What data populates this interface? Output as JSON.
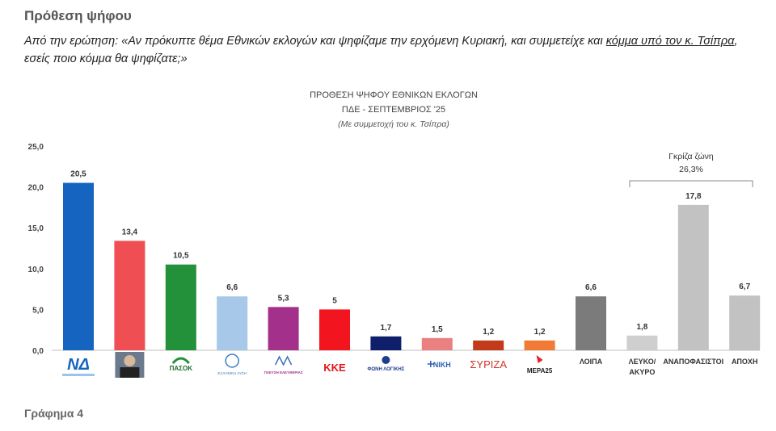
{
  "header": {
    "title": "Πρόθεση ψήφου",
    "question_prefix": "Από την ερώτηση: «Αν πρόκυπτε θέμα Εθνικών εκλογών και ψηφίζαμε την ερχόμενη Κυριακή, και συμμετείχε και ",
    "question_underlined": "κόμμα υπό τον κ. Τσίπρα",
    "question_suffix": ", εσείς ποιο κόμμα θα ψηφίζατε;»"
  },
  "footer": {
    "caption": "Γράφημα 4"
  },
  "chart_data": {
    "type": "bar",
    "title": "ΠΡΟΘΕΣΗ ΨΗΦΟΥ  ΕΘΝΙΚΩΝ ΕΚΛΟΓΩΝ",
    "subtitle": "ΠΔΕ - ΣΕΠΤΕΜΒΡΙΟΣ '25",
    "note": "(Με συμμετοχή του κ. Τσίπρα)",
    "xlabel": "",
    "ylabel": "",
    "ylim": [
      0,
      25
    ],
    "yticks": [
      "0,0",
      "5,0",
      "10,0",
      "15,0",
      "20,0",
      "25,0"
    ],
    "grid": false,
    "categories": [
      "ΝΔ",
      "Τσίπρας",
      "ΠΑΣΟΚ",
      "ΕΛΛΗΝΙΚΗ ΛΥΣΗ",
      "ΠΛΕΥΣΗ ΕΛΕΥΘΕΡΙΑΣ",
      "ΚΚΕ",
      "ΦΩΝΗ ΛΟΓΙΚΗΣ",
      "ΝΙΚΗ",
      "ΣΥΡΙΖΑ",
      "ΜΕΡΑ25",
      "ΛΟΙΠΑ",
      "ΛΕΥΚΟ/ ΑΚΥΡΟ",
      "ΑΝΑΠΟΦΑΣΙΣΤΟΙ",
      "ΑΠΟΧΗ"
    ],
    "values": [
      20.5,
      13.4,
      10.5,
      6.6,
      5.3,
      5,
      1.7,
      1.5,
      1.2,
      1.2,
      6.6,
      1.8,
      17.8,
      6.7
    ],
    "value_labels": [
      "20,5",
      "13,4",
      "10,5",
      "6,6",
      "5,3",
      "5",
      "1,7",
      "1,5",
      "1,2",
      "1,2",
      "6,6",
      "1,8",
      "17,8",
      "6,7"
    ],
    "colors": [
      "#1565c0",
      "#ef4f53",
      "#23913a",
      "#a7c8e8",
      "#a3318b",
      "#f2141e",
      "#0f1f6b",
      "#ea8080",
      "#c23a1a",
      "#f07a36",
      "#7b7b7b",
      "#cfcfcf",
      "#c2c2c2",
      "#c2c2c2"
    ],
    "category_text_labels": [
      "",
      "",
      "",
      "",
      "",
      "",
      "",
      "",
      "",
      "",
      "ΛΟΙΠΑ",
      "ΛΕΥΚΟ/ ΑΚΥΡΟ",
      "ΑΝΑΠΟΦΑΣΙΣΤΟΙ",
      "ΑΠΟΧΗ"
    ],
    "logo_labels": [
      "ΝΔ",
      "",
      "ΠΑΣΟΚ",
      "ΕΛΛΗΝΙΚΗ ΛΥΣΗ",
      "ΠΛΕΥΣΗ ΕΛΕΥΘΕΡΙΑΣ",
      "ΚΚΕ",
      "ΦΩΝΗ ΛΟΓΙΚΗΣ",
      "ΝΙΚΗ",
      "ΣΥΡΙΖΑ",
      "ΜΕΡΑ25",
      "",
      "",
      "",
      ""
    ],
    "annotation": {
      "title": "Γκρίζα ζώνη",
      "value": "26,3%"
    }
  }
}
